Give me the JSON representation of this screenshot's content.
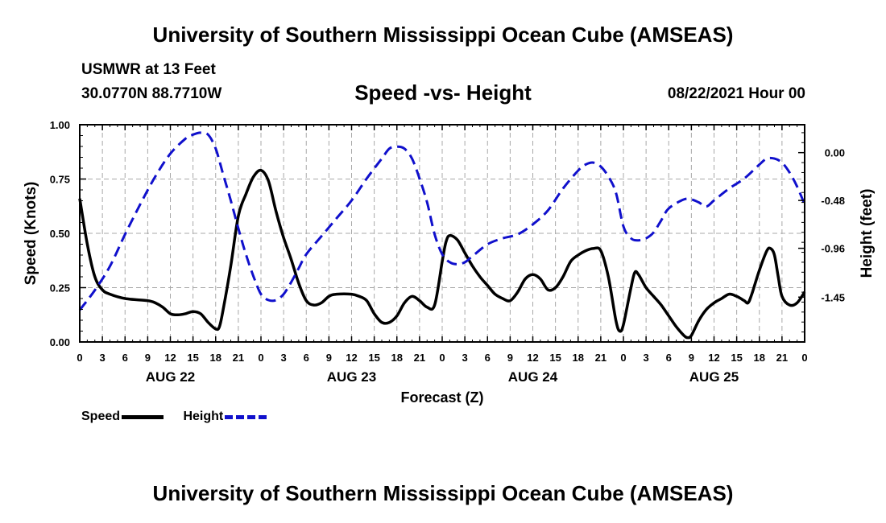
{
  "header": {
    "title": "University of Southern Mississippi Ocean Cube (AMSEAS)",
    "station": "USMWR at 13 Feet",
    "coords": "30.0770N  88.7710W",
    "subtitle": "Speed -vs- Height",
    "run_date": "08/22/2021 Hour 00"
  },
  "footer": {
    "title": "University of Southern Mississippi Ocean Cube (AMSEAS)"
  },
  "legend": {
    "speed_label": "Speed",
    "height_label": "Height"
  },
  "colors": {
    "speed": "#000000",
    "height": "#1010cc",
    "grid": "#a8a8a8"
  },
  "chart_data": {
    "type": "line",
    "title": "Speed -vs- Height",
    "xlabel": "Forecast (Z)",
    "ylabel": "Speed (Knots)",
    "y2label": "Height (feet)",
    "xlim": [
      0,
      96
    ],
    "ylim": [
      0,
      1.0
    ],
    "y2lim": [
      -1.9,
      0.28
    ],
    "x_ticks": [
      0,
      3,
      6,
      9,
      12,
      15,
      18,
      21,
      24,
      27,
      30,
      33,
      36,
      39,
      42,
      45,
      48,
      51,
      54,
      57,
      60,
      63,
      66,
      69,
      72,
      75,
      78,
      81,
      84,
      87,
      90,
      93,
      96
    ],
    "x_tick_labels": [
      "0",
      "3",
      "6",
      "9",
      "12",
      "15",
      "18",
      "21",
      "0",
      "3",
      "6",
      "9",
      "12",
      "15",
      "18",
      "21",
      "0",
      "3",
      "6",
      "9",
      "12",
      "15",
      "18",
      "21",
      "0",
      "3",
      "6",
      "9",
      "12",
      "15",
      "18",
      "21",
      "0"
    ],
    "day_labels": [
      {
        "x": 12,
        "label": "AUG 22"
      },
      {
        "x": 36,
        "label": "AUG 23"
      },
      {
        "x": 60,
        "label": "AUG 24"
      },
      {
        "x": 84,
        "label": "AUG 25"
      }
    ],
    "y_ticks": [
      0.0,
      0.25,
      0.5,
      0.75,
      1.0
    ],
    "y_tick_labels": [
      "0.00",
      "0.25",
      "0.50",
      "0.75",
      "1.00"
    ],
    "y2_ticks": [
      0.0,
      -0.48,
      -0.96,
      -1.45
    ],
    "y2_tick_labels": [
      "0.00",
      "-0.48",
      "-0.96",
      "-1.45"
    ],
    "grid": true,
    "legend_position": "bottom-left",
    "series": [
      {
        "name": "Speed",
        "axis": "left",
        "style": "solid",
        "points": [
          [
            0,
            0.66
          ],
          [
            1,
            0.45
          ],
          [
            2,
            0.3
          ],
          [
            3,
            0.24
          ],
          [
            4,
            0.22
          ],
          [
            6,
            0.2
          ],
          [
            9,
            0.19
          ],
          [
            10,
            0.18
          ],
          [
            11,
            0.16
          ],
          [
            12,
            0.13
          ],
          [
            13,
            0.125
          ],
          [
            14,
            0.13
          ],
          [
            15,
            0.14
          ],
          [
            16,
            0.13
          ],
          [
            17,
            0.09
          ],
          [
            18,
            0.06
          ],
          [
            18.5,
            0.07
          ],
          [
            19,
            0.15
          ],
          [
            20,
            0.35
          ],
          [
            21,
            0.58
          ],
          [
            22,
            0.68
          ],
          [
            23,
            0.76
          ],
          [
            24,
            0.79
          ],
          [
            25,
            0.74
          ],
          [
            26,
            0.6
          ],
          [
            27,
            0.48
          ],
          [
            28,
            0.38
          ],
          [
            29,
            0.27
          ],
          [
            30,
            0.19
          ],
          [
            31,
            0.17
          ],
          [
            32,
            0.18
          ],
          [
            33,
            0.21
          ],
          [
            34,
            0.22
          ],
          [
            36,
            0.22
          ],
          [
            37,
            0.21
          ],
          [
            38,
            0.19
          ],
          [
            39,
            0.13
          ],
          [
            40,
            0.09
          ],
          [
            41,
            0.09
          ],
          [
            42,
            0.12
          ],
          [
            43,
            0.18
          ],
          [
            44,
            0.21
          ],
          [
            45,
            0.19
          ],
          [
            46,
            0.16
          ],
          [
            47,
            0.17
          ],
          [
            48,
            0.37
          ],
          [
            48.5,
            0.46
          ],
          [
            49,
            0.49
          ],
          [
            50,
            0.47
          ],
          [
            51,
            0.41
          ],
          [
            52,
            0.35
          ],
          [
            53,
            0.3
          ],
          [
            54,
            0.26
          ],
          [
            55,
            0.22
          ],
          [
            56,
            0.2
          ],
          [
            57,
            0.19
          ],
          [
            58,
            0.23
          ],
          [
            59,
            0.29
          ],
          [
            60,
            0.31
          ],
          [
            61,
            0.29
          ],
          [
            62,
            0.24
          ],
          [
            63,
            0.25
          ],
          [
            64,
            0.3
          ],
          [
            65,
            0.37
          ],
          [
            66,
            0.4
          ],
          [
            67,
            0.42
          ],
          [
            68,
            0.43
          ],
          [
            69,
            0.42
          ],
          [
            70,
            0.3
          ],
          [
            71,
            0.1
          ],
          [
            71.5,
            0.05
          ],
          [
            72,
            0.08
          ],
          [
            73,
            0.25
          ],
          [
            73.5,
            0.32
          ],
          [
            74,
            0.31
          ],
          [
            75,
            0.25
          ],
          [
            76,
            0.21
          ],
          [
            77,
            0.17
          ],
          [
            78,
            0.12
          ],
          [
            79,
            0.07
          ],
          [
            80,
            0.03
          ],
          [
            80.5,
            0.02
          ],
          [
            81,
            0.03
          ],
          [
            82,
            0.1
          ],
          [
            83,
            0.15
          ],
          [
            84,
            0.18
          ],
          [
            85,
            0.2
          ],
          [
            86,
            0.22
          ],
          [
            87,
            0.21
          ],
          [
            88,
            0.19
          ],
          [
            88.5,
            0.18
          ],
          [
            89,
            0.22
          ],
          [
            90,
            0.33
          ],
          [
            91,
            0.42
          ],
          [
            91.5,
            0.43
          ],
          [
            92,
            0.4
          ],
          [
            92.5,
            0.3
          ],
          [
            93,
            0.21
          ],
          [
            94,
            0.17
          ],
          [
            95,
            0.18
          ],
          [
            96,
            0.23
          ]
        ]
      },
      {
        "name": "Height",
        "axis": "right",
        "style": "dashed",
        "points": [
          [
            0,
            -1.58
          ],
          [
            2,
            -1.38
          ],
          [
            4,
            -1.14
          ],
          [
            6,
            -0.82
          ],
          [
            8,
            -0.52
          ],
          [
            10,
            -0.24
          ],
          [
            12,
            -0.01
          ],
          [
            14,
            0.14
          ],
          [
            15,
            0.18
          ],
          [
            16,
            0.2
          ],
          [
            17,
            0.18
          ],
          [
            18,
            0.04
          ],
          [
            19,
            -0.22
          ],
          [
            20,
            -0.48
          ],
          [
            21,
            -0.76
          ],
          [
            22,
            -1.02
          ],
          [
            23,
            -1.24
          ],
          [
            24,
            -1.42
          ],
          [
            25,
            -1.48
          ],
          [
            26,
            -1.48
          ],
          [
            27,
            -1.42
          ],
          [
            28,
            -1.3
          ],
          [
            29,
            -1.16
          ],
          [
            30,
            -1.02
          ],
          [
            32,
            -0.84
          ],
          [
            34,
            -0.66
          ],
          [
            36,
            -0.48
          ],
          [
            38,
            -0.26
          ],
          [
            40,
            -0.06
          ],
          [
            41,
            0.04
          ],
          [
            42,
            0.06
          ],
          [
            43,
            0.04
          ],
          [
            44,
            -0.06
          ],
          [
            45,
            -0.26
          ],
          [
            46,
            -0.5
          ],
          [
            47,
            -0.82
          ],
          [
            48,
            -1.02
          ],
          [
            49,
            -1.1
          ],
          [
            50,
            -1.12
          ],
          [
            51,
            -1.1
          ],
          [
            52,
            -1.04
          ],
          [
            54,
            -0.92
          ],
          [
            56,
            -0.86
          ],
          [
            58,
            -0.82
          ],
          [
            60,
            -0.72
          ],
          [
            62,
            -0.58
          ],
          [
            64,
            -0.36
          ],
          [
            66,
            -0.18
          ],
          [
            67,
            -0.12
          ],
          [
            68,
            -0.1
          ],
          [
            69,
            -0.14
          ],
          [
            70,
            -0.24
          ],
          [
            71,
            -0.4
          ],
          [
            72,
            -0.74
          ],
          [
            73,
            -0.86
          ],
          [
            74,
            -0.88
          ],
          [
            75,
            -0.86
          ],
          [
            76,
            -0.8
          ],
          [
            77,
            -0.68
          ],
          [
            78,
            -0.56
          ],
          [
            80,
            -0.47
          ],
          [
            81,
            -0.47
          ],
          [
            82,
            -0.5
          ],
          [
            83,
            -0.54
          ],
          [
            84,
            -0.48
          ],
          [
            86,
            -0.36
          ],
          [
            88,
            -0.26
          ],
          [
            90,
            -0.12
          ],
          [
            91,
            -0.06
          ],
          [
            92,
            -0.06
          ],
          [
            93,
            -0.1
          ],
          [
            94,
            -0.2
          ],
          [
            95,
            -0.34
          ],
          [
            96,
            -0.52
          ]
        ]
      }
    ]
  }
}
